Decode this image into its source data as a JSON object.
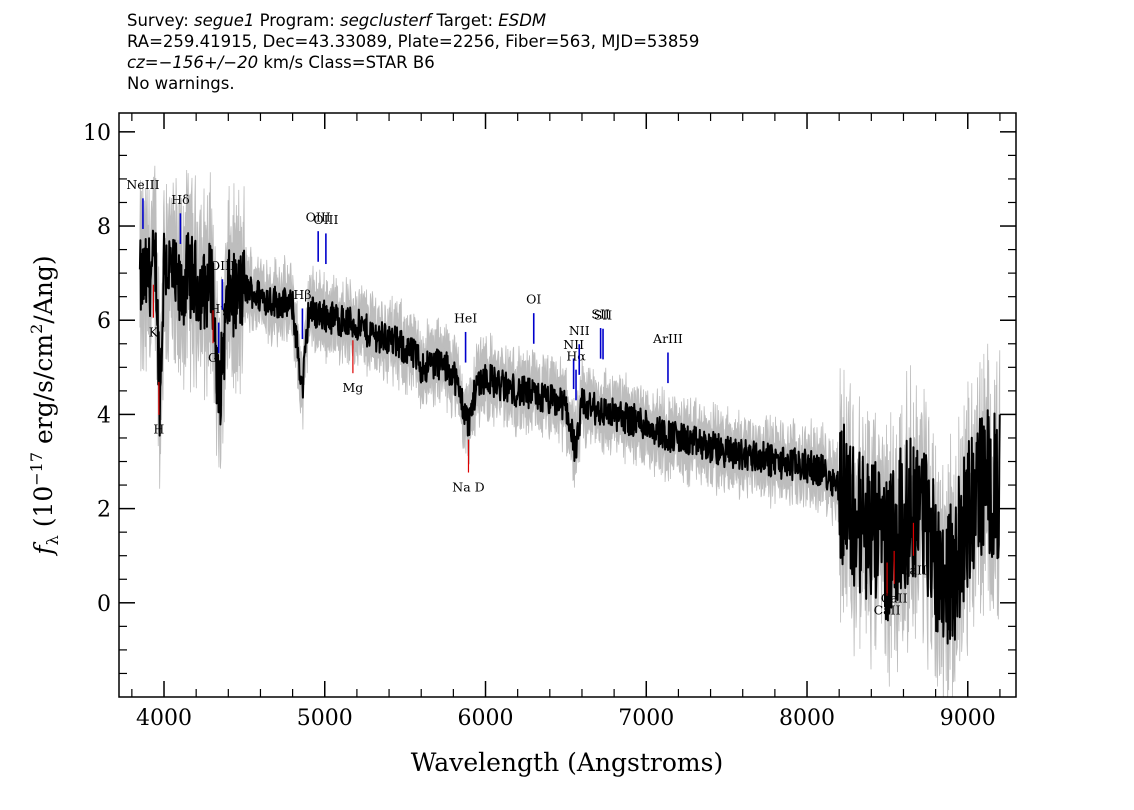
{
  "header": {
    "survey_label": "Survey:",
    "survey": "segue1",
    "program_label": "Program:",
    "program": "segclusterf",
    "target_label": "Target:",
    "target": "ESDM",
    "line2": "RA=259.41915, Dec=43.33089, Plate=2256, Fiber=563, MJD=53859",
    "cz": "cz=",
    "cz_value": "−156+/−20",
    "cz_unit": " km/s Class=STAR B6",
    "line4": "No warnings."
  },
  "colors": {
    "flux": "#000000",
    "error_band": "#bdbdbd",
    "emission_line": "#0000cc",
    "absorption_line": "#dd0000"
  },
  "chart_data": {
    "type": "line",
    "title": "",
    "xlabel": "Wavelength (Angstroms)",
    "ylabel_parts": [
      "f",
      "λ",
      " (10",
      "−17",
      " erg/s/cm",
      "2",
      "/Ang)"
    ],
    "xlim": [
      3720,
      9300
    ],
    "ylim": [
      -2.0,
      10.4
    ],
    "xticks": [
      4000,
      5000,
      6000,
      7000,
      8000,
      9000
    ],
    "yticks": [
      0,
      2,
      4,
      6,
      8,
      10
    ],
    "grid": false,
    "legend": "none",
    "series": [
      {
        "x": [
          3850,
          3900,
          3950,
          3975,
          4000,
          4050,
          4100,
          4150,
          4200,
          4250,
          4300,
          4340,
          4400,
          4450,
          4500,
          4600,
          4700,
          4800,
          4861,
          4900,
          5000,
          5100,
          5200,
          5300,
          5400,
          5500,
          5577,
          5600,
          5700,
          5800,
          5893,
          5950,
          6000,
          6100,
          6200,
          6300,
          6400,
          6500,
          6563,
          6600,
          6700,
          6800,
          6900,
          7000,
          7100,
          7200,
          7300,
          7400,
          7500,
          7600,
          7700,
          7800,
          7900,
          8000,
          8100,
          8200,
          8300,
          8400,
          8500,
          8600,
          8700,
          8800,
          8900,
          9000,
          9100,
          9200
        ],
        "y": [
          6.8,
          6.9,
          7.2,
          4.2,
          7.3,
          7.0,
          6.5,
          7.0,
          6.8,
          6.6,
          6.9,
          4.2,
          6.6,
          6.5,
          6.7,
          6.5,
          6.4,
          6.3,
          4.5,
          6.2,
          6.1,
          6.0,
          5.9,
          5.7,
          5.6,
          5.4,
          5.2,
          5.0,
          5.1,
          4.9,
          3.8,
          4.7,
          4.8,
          4.6,
          4.5,
          4.4,
          4.3,
          4.2,
          3.2,
          4.2,
          4.1,
          4.0,
          3.9,
          3.8,
          3.6,
          3.5,
          3.4,
          3.3,
          3.2,
          3.15,
          3.1,
          3.0,
          2.95,
          2.9,
          2.8,
          2.5,
          1.8,
          1.5,
          1.2,
          1.8,
          2.2,
          1.0,
          0.5,
          1.9,
          2.6,
          2.4
        ]
      }
    ],
    "line_markers": [
      {
        "label": "NeIII",
        "x": 3869,
        "kind": "emission"
      },
      {
        "label": "Hδ",
        "x": 4102,
        "kind": "emission"
      },
      {
        "label": "Hγ",
        "x": 4340,
        "kind": "emission"
      },
      {
        "label": "OIII",
        "x": 4363,
        "kind": "emission"
      },
      {
        "label": "Hβ",
        "x": 4861,
        "kind": "emission"
      },
      {
        "label": "OIII",
        "x": 4959,
        "kind": "emission"
      },
      {
        "label": "OIII",
        "x": 5007,
        "kind": "emission"
      },
      {
        "label": "HeI",
        "x": 5876,
        "kind": "emission"
      },
      {
        "label": "OI",
        "x": 6300,
        "kind": "emission"
      },
      {
        "label": "NII",
        "x": 6548,
        "kind": "emission"
      },
      {
        "label": "Hα",
        "x": 6563,
        "kind": "emission"
      },
      {
        "label": "NII",
        "x": 6583,
        "kind": "emission"
      },
      {
        "label": "SII",
        "x": 6716,
        "kind": "emission"
      },
      {
        "label": "SII",
        "x": 6731,
        "kind": "emission"
      },
      {
        "label": "ArIII",
        "x": 7135,
        "kind": "emission"
      },
      {
        "label": "K",
        "x": 3934,
        "kind": "absorption"
      },
      {
        "label": "H",
        "x": 3968,
        "kind": "absorption"
      },
      {
        "label": "G",
        "x": 4305,
        "kind": "absorption"
      },
      {
        "label": "Mg",
        "x": 5175,
        "kind": "absorption"
      },
      {
        "label": "Na D",
        "x": 5894,
        "kind": "absorption"
      },
      {
        "label": "CaII",
        "x": 8498,
        "kind": "absorption"
      },
      {
        "label": "CaII",
        "x": 8542,
        "kind": "absorption"
      },
      {
        "label": "CaII",
        "x": 8662,
        "kind": "absorption"
      }
    ]
  }
}
